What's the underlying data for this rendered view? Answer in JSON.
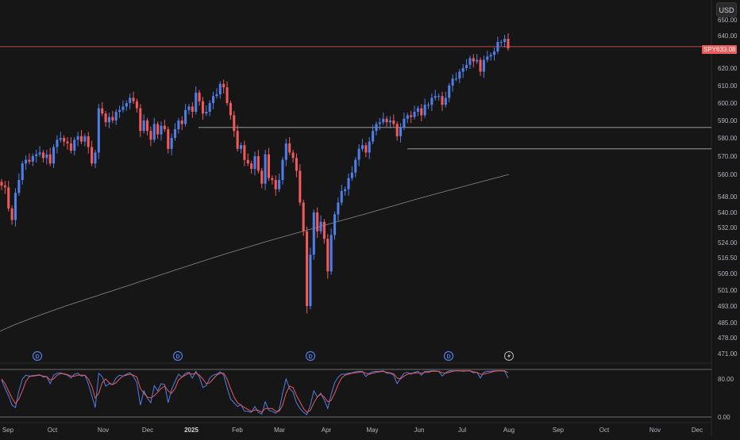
{
  "currency_label": "USD",
  "price_tag": {
    "symbol": "SPY",
    "value": "633.08"
  },
  "colors": {
    "background": "#161616",
    "up": "#4f7ee8",
    "down": "#f05a5a",
    "ma": "#8a8a8a",
    "hline": "#9a9a9a",
    "stoch_k": "#4f7ee8",
    "stoch_d": "#e85a5a"
  },
  "chart_data": [
    {
      "type": "candlestick",
      "symbol": "SPY",
      "current_price": 633.08,
      "price_axis_ticks": [
        "650.00",
        "640.00",
        "630.00",
        "620.00",
        "610.00",
        "600.00",
        "590.00",
        "580.00",
        "570.00",
        "560.00",
        "548.00",
        "540.00",
        "532.00",
        "524.00",
        "516.50",
        "509.00",
        "501.00",
        "493.00",
        "485.00",
        "478.00",
        "471.00"
      ],
      "x_axis_labels": [
        "Sep",
        "Oct",
        "Nov",
        "Dec",
        "2025",
        "Feb",
        "Mar",
        "Apr",
        "May",
        "Jun",
        "Jul",
        "Aug",
        "Sep",
        "Oct",
        "Nov",
        "Dec"
      ],
      "horizontal_lines": [
        586,
        574
      ],
      "moving_average": {
        "start": 481,
        "end": 560
      },
      "closes": [
        554,
        553,
        542,
        536,
        550,
        557,
        566,
        568,
        567,
        570,
        571,
        572,
        569,
        571,
        566,
        575,
        579,
        580,
        578,
        577,
        573,
        579,
        581,
        578,
        581,
        575,
        566,
        572,
        597,
        594,
        589,
        592,
        590,
        595,
        596,
        598,
        600,
        603,
        601,
        597,
        584,
        590,
        584,
        579,
        588,
        582,
        587,
        585,
        574,
        580,
        585,
        590,
        588,
        596,
        598,
        595,
        606,
        601,
        594,
        595,
        600,
        604,
        605,
        611,
        609,
        600,
        593,
        584,
        574,
        576,
        568,
        566,
        563,
        570,
        562,
        555,
        571,
        558,
        557,
        552,
        557,
        568,
        577,
        572,
        569,
        562,
        545,
        530,
        493,
        518,
        540,
        530,
        535,
        526,
        510,
        528,
        539,
        545,
        551,
        552,
        558,
        561,
        568,
        574,
        576,
        572,
        578,
        584,
        588,
        589,
        591,
        589,
        590,
        588,
        581,
        586,
        591,
        593,
        592,
        595,
        597,
        593,
        599,
        599,
        603,
        604,
        604,
        599,
        603,
        610,
        614,
        614,
        618,
        620,
        622,
        626,
        624,
        625,
        618,
        625,
        627,
        628,
        630,
        636,
        636,
        638,
        632
      ],
      "event_markers": [
        "D",
        "D",
        "D",
        "D"
      ],
      "lightning_marker": "lightning-icon"
    },
    {
      "type": "line",
      "indicator": "stochastic oscillator",
      "ticks": [
        "80.00",
        "0.00"
      ],
      "series": [
        {
          "values": [
            78,
            60,
            45,
            25,
            20,
            55,
            80,
            88,
            86,
            87,
            88,
            89,
            84,
            85,
            70,
            88,
            92,
            93,
            90,
            88,
            82,
            90,
            92,
            86,
            88,
            70,
            45,
            20,
            92,
            85,
            65,
            70,
            68,
            82,
            88,
            86,
            90,
            93,
            85,
            72,
            25,
            55,
            40,
            30,
            66,
            55,
            70,
            68,
            30,
            58,
            75,
            90,
            84,
            92,
            94,
            82,
            96,
            84,
            62,
            66,
            82,
            88,
            90,
            95,
            88,
            62,
            38,
            30,
            22,
            26,
            12,
            12,
            10,
            22,
            10,
            6,
            32,
            14,
            12,
            8,
            15,
            50,
            80,
            60,
            52,
            30,
            18,
            10,
            5,
            25,
            55,
            42,
            50,
            36,
            18,
            48,
            72,
            84,
            90,
            90,
            92,
            93,
            95,
            96,
            96,
            85,
            92,
            95,
            96,
            96,
            97,
            92,
            92,
            88,
            70,
            82,
            92,
            94,
            90,
            94,
            96,
            88,
            96,
            96,
            97,
            97,
            96,
            86,
            93,
            97,
            97,
            97,
            97,
            96,
            97,
            97,
            93,
            94,
            82,
            94,
            96,
            96,
            97,
            97,
            97,
            96,
            82
          ]
        },
        {
          "values": [
            80,
            70,
            55,
            40,
            28,
            38,
            55,
            75,
            85,
            86,
            87,
            88,
            86,
            85,
            78,
            80,
            88,
            91,
            91,
            89,
            86,
            86,
            88,
            88,
            88,
            80,
            65,
            40,
            50,
            72,
            80,
            72,
            68,
            72,
            80,
            86,
            88,
            90,
            88,
            84,
            60,
            50,
            42,
            40,
            45,
            52,
            60,
            65,
            55,
            50,
            60,
            78,
            84,
            88,
            92,
            90,
            92,
            88,
            80,
            70,
            72,
            80,
            88,
            92,
            92,
            80,
            60,
            42,
            30,
            25,
            20,
            16,
            12,
            15,
            14,
            10,
            18,
            18,
            18,
            12,
            12,
            25,
            50,
            65,
            62,
            45,
            32,
            18,
            10,
            14,
            30,
            42,
            48,
            42,
            32,
            35,
            50,
            68,
            82,
            88,
            90,
            92,
            93,
            94,
            95,
            92,
            90,
            92,
            94,
            95,
            96,
            94,
            93,
            91,
            82,
            80,
            86,
            90,
            92,
            92,
            93,
            92,
            94,
            94,
            96,
            96,
            96,
            93,
            92,
            94,
            96,
            97,
            97,
            97,
            97,
            97,
            95,
            94,
            90,
            90,
            92,
            94,
            96,
            97,
            97,
            97,
            93
          ]
        }
      ]
    }
  ]
}
